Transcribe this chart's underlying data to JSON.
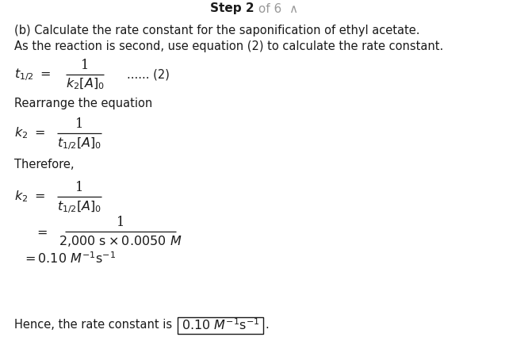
{
  "bg_color": "#ffffff",
  "header_step": "Step ",
  "header_2": "2",
  "header_rest": " of 6  ∧",
  "line1": "(b) Calculate the rate constant for the saponification of ethyl acetate.",
  "line2": "As the reaction is second, use equation (2) to calculate the rate constant.",
  "rearrange": "Rearrange the equation",
  "therefore": "Therefore,",
  "final_text": "Hence, the rate constant is",
  "fontsize_body": 10.5,
  "fontsize_math": 11.5,
  "fontsize_header": 11,
  "gray_color": "#aaaaaa",
  "black_color": "#1a1a1a",
  "header_gray": "#999999"
}
